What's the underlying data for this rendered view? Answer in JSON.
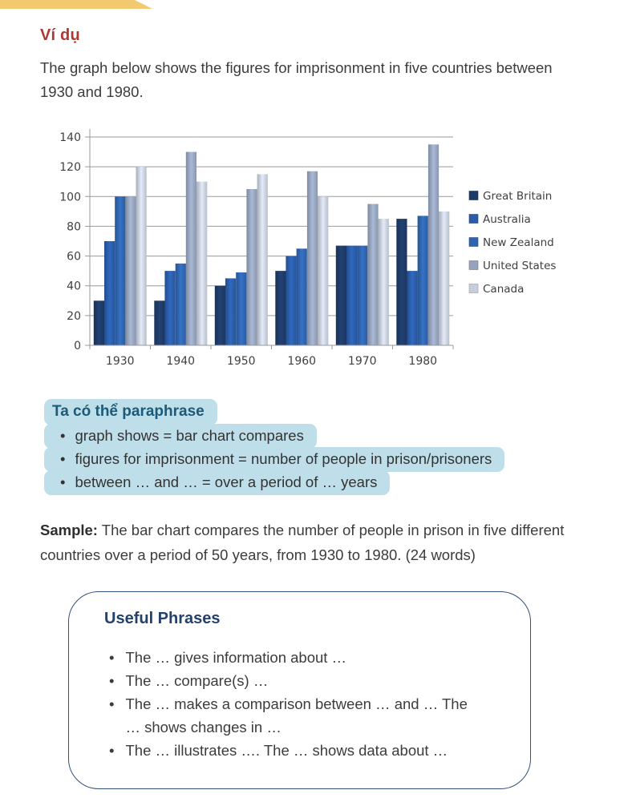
{
  "theme": {
    "accent_red": "#B23732",
    "paraphrase_blue": "#1B5A78",
    "highlight": "#BEDFE9",
    "navy": "#24416B",
    "box_border": "#31507E",
    "ribbon": "#F2C96E",
    "text": "#3C3C3C",
    "chart_text": "#3F3F3F",
    "grid_color": "#9A9A9A"
  },
  "example": {
    "label": "Ví dụ",
    "description": "The graph below shows the figures for imprisonment in five countries between 1930 and 1980."
  },
  "chart_data": {
    "type": "bar",
    "title": "",
    "xlabel": "",
    "ylabel": "",
    "categories": [
      "1930",
      "1940",
      "1950",
      "1960",
      "1970",
      "1980"
    ],
    "series": [
      {
        "name": "Great Britain",
        "color": "#1E3A66",
        "values": [
          30,
          30,
          40,
          50,
          67,
          85
        ]
      },
      {
        "name": "Australia",
        "color": "#2A5CA8",
        "values": [
          70,
          50,
          45,
          60,
          67,
          50
        ]
      },
      {
        "name": "New Zealand",
        "color": "#2F64AE",
        "values": [
          100,
          55,
          49,
          65,
          67,
          87
        ]
      },
      {
        "name": "United States",
        "color": "#95A3BC",
        "values": [
          100,
          130,
          105,
          117,
          95,
          135
        ]
      },
      {
        "name": "Canada",
        "color": "#C7CEDB",
        "values": [
          120,
          110,
          115,
          100,
          85,
          90
        ]
      }
    ],
    "ylim": [
      0,
      140
    ],
    "ytick_step": 20,
    "grid": true,
    "legend_position": "right"
  },
  "paraphrase": {
    "title": "Ta có thể paraphrase",
    "bullet": "•",
    "items": [
      "graph shows = bar chart compares",
      "figures for imprisonment = number of people in prison/prisoners",
      "between … and … = over a period of … years"
    ]
  },
  "sample": {
    "label": "Sample:",
    "text": " The bar chart compares the number of people in prison in five different countries over a period of 50 years, from 1930 to 1980. (24 words)"
  },
  "useful_phrases": {
    "title": "Useful Phrases",
    "bullet": "•",
    "items": [
      "The … gives information about …",
      "The … compare(s) …",
      "The … makes a comparison between … and … The … shows changes in …",
      "The … illustrates …. The … shows data about …"
    ]
  }
}
